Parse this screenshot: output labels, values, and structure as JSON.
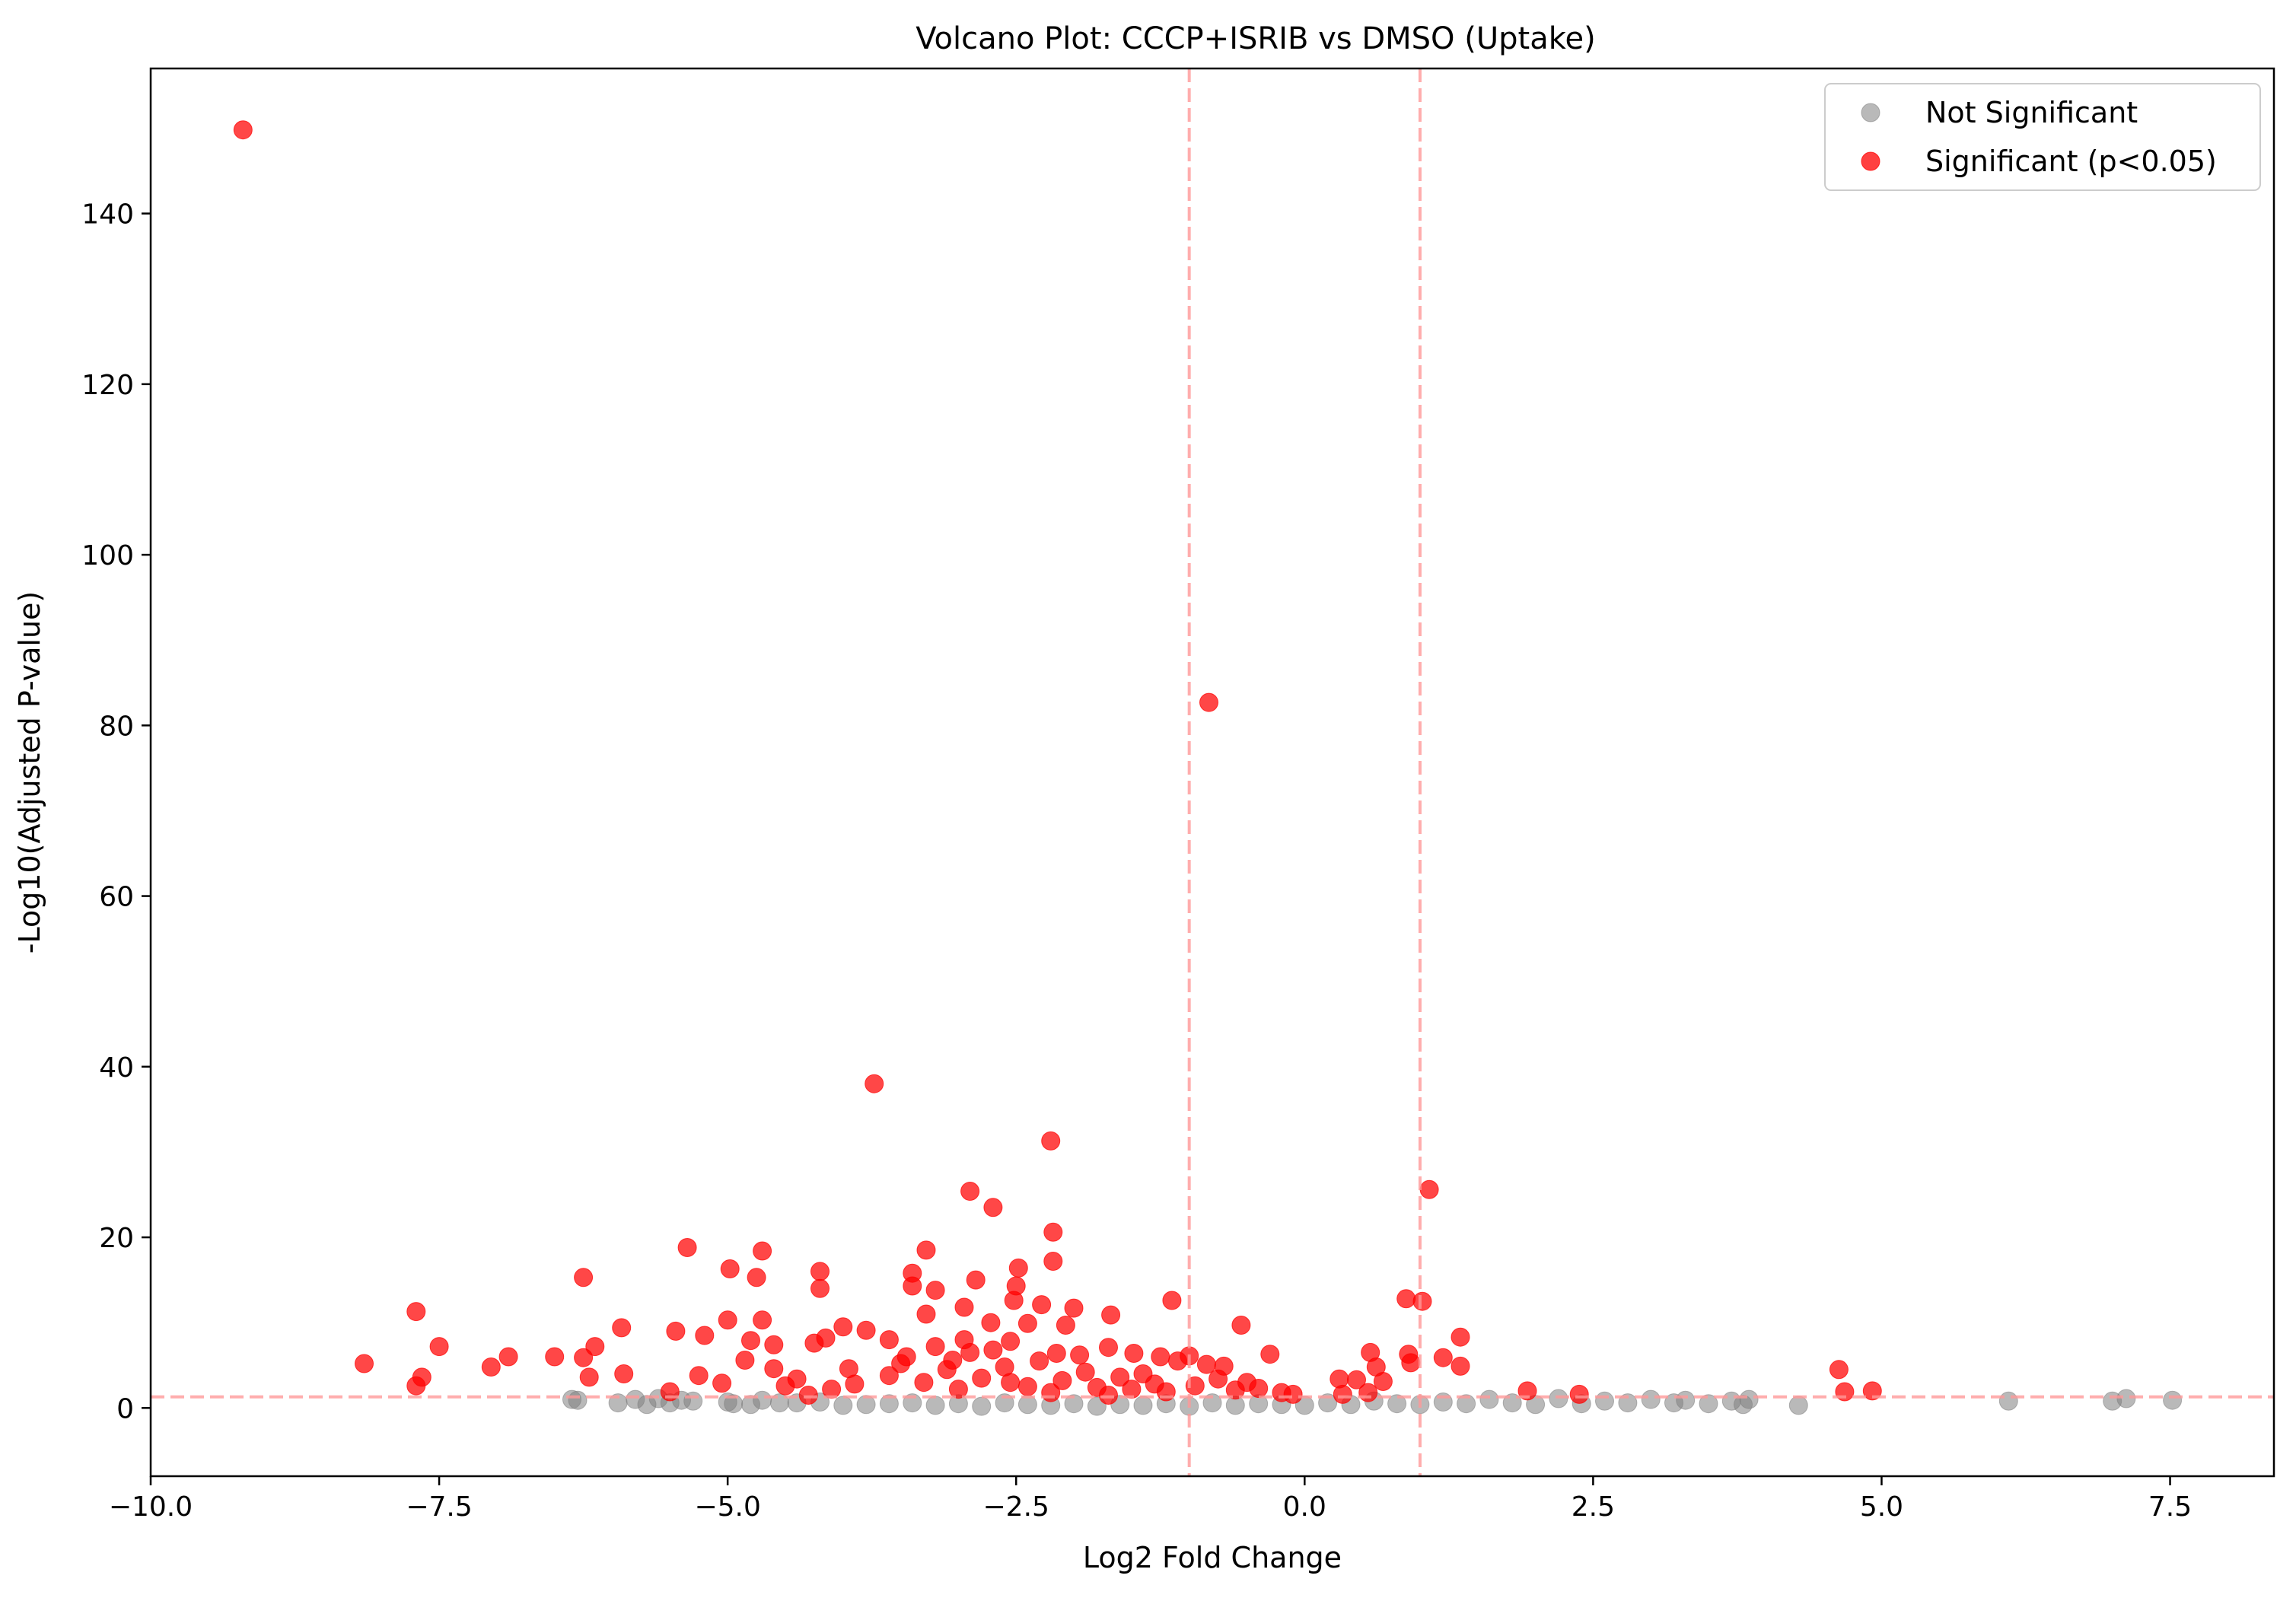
{
  "chart_data": {
    "type": "scatter",
    "title": "Volcano Plot: CCCP+ISRIB vs DMSO (Uptake)",
    "xlabel": "Log2 Fold Change",
    "ylabel": "-Log10(Adjusted P-value)",
    "xlim": [
      -10.0,
      8.4
    ],
    "ylim": [
      -8,
      157
    ],
    "x_ticks": [
      -10.0,
      -7.5,
      -5.0,
      -2.5,
      0.0,
      2.5,
      5.0,
      7.5
    ],
    "x_tick_labels": [
      "−10.0",
      "−7.5",
      "−5.0",
      "−2.5",
      "0.0",
      "2.5",
      "5.0",
      "7.5"
    ],
    "y_ticks": [
      0,
      20,
      40,
      60,
      80,
      100,
      120,
      140
    ],
    "y_tick_labels": [
      "0",
      "20",
      "40",
      "60",
      "80",
      "100",
      "120",
      "140"
    ],
    "grid": false,
    "legend_position": "top-right",
    "reference_lines": {
      "vertical_x": [
        -1,
        1
      ],
      "horizontal_y": [
        1.3
      ],
      "color": "#ff9999",
      "style": "dashed"
    },
    "series": [
      {
        "name": "Not Significant",
        "color": "#808080",
        "points": [
          [
            -6.35,
            1.0
          ],
          [
            -6.3,
            0.9
          ],
          [
            -5.95,
            0.6
          ],
          [
            -5.8,
            1.0
          ],
          [
            -5.7,
            0.4
          ],
          [
            -5.6,
            1.1
          ],
          [
            -5.5,
            0.6
          ],
          [
            -5.4,
            0.9
          ],
          [
            -5.3,
            0.8
          ],
          [
            -5.0,
            0.7
          ],
          [
            -4.95,
            0.5
          ],
          [
            -4.8,
            0.4
          ],
          [
            -4.7,
            0.9
          ],
          [
            -4.55,
            0.6
          ],
          [
            -4.4,
            0.6
          ],
          [
            -4.2,
            0.7
          ],
          [
            -4.0,
            0.3
          ],
          [
            -3.8,
            0.4
          ],
          [
            -3.6,
            0.5
          ],
          [
            -3.4,
            0.6
          ],
          [
            -3.2,
            0.3
          ],
          [
            -3.0,
            0.5
          ],
          [
            -2.8,
            0.2
          ],
          [
            -2.6,
            0.6
          ],
          [
            -2.4,
            0.4
          ],
          [
            -2.2,
            0.3
          ],
          [
            -2.0,
            0.5
          ],
          [
            -1.8,
            0.2
          ],
          [
            -1.6,
            0.4
          ],
          [
            -1.4,
            0.3
          ],
          [
            -1.2,
            0.5
          ],
          [
            -1.0,
            0.2
          ],
          [
            -0.8,
            0.6
          ],
          [
            -0.6,
            0.3
          ],
          [
            -0.4,
            0.5
          ],
          [
            -0.2,
            0.4
          ],
          [
            0.0,
            0.3
          ],
          [
            0.2,
            0.6
          ],
          [
            0.4,
            0.4
          ],
          [
            0.6,
            0.8
          ],
          [
            0.8,
            0.5
          ],
          [
            1.0,
            0.4
          ],
          [
            1.2,
            0.7
          ],
          [
            1.4,
            0.5
          ],
          [
            1.6,
            1.0
          ],
          [
            1.8,
            0.6
          ],
          [
            2.0,
            0.4
          ],
          [
            2.2,
            1.1
          ],
          [
            2.4,
            0.5
          ],
          [
            2.6,
            0.8
          ],
          [
            2.8,
            0.6
          ],
          [
            3.0,
            1.0
          ],
          [
            3.2,
            0.6
          ],
          [
            3.3,
            0.9
          ],
          [
            3.5,
            0.5
          ],
          [
            3.7,
            0.8
          ],
          [
            3.8,
            0.4
          ],
          [
            3.85,
            1.0
          ],
          [
            4.28,
            0.3
          ],
          [
            6.1,
            0.8
          ],
          [
            7.0,
            0.8
          ],
          [
            7.12,
            1.1
          ],
          [
            7.52,
            0.9
          ]
        ]
      },
      {
        "name": "Significant (p<0.05)",
        "color": "#ff0000",
        "points": [
          [
            -9.2,
            149.8
          ],
          [
            -0.83,
            82.7
          ],
          [
            -3.73,
            38.0
          ],
          [
            -2.2,
            31.3
          ],
          [
            1.08,
            25.6
          ],
          [
            -2.9,
            25.4
          ],
          [
            -2.7,
            23.5
          ],
          [
            -2.18,
            20.6
          ],
          [
            -5.35,
            18.8
          ],
          [
            -4.7,
            18.4
          ],
          [
            -3.28,
            18.5
          ],
          [
            -2.18,
            17.2
          ],
          [
            -2.48,
            16.4
          ],
          [
            -4.98,
            16.3
          ],
          [
            -4.2,
            16.0
          ],
          [
            -3.4,
            15.8
          ],
          [
            -6.25,
            15.3
          ],
          [
            -4.75,
            15.3
          ],
          [
            -2.85,
            15.0
          ],
          [
            -3.4,
            14.3
          ],
          [
            -2.5,
            14.3
          ],
          [
            -4.2,
            14.0
          ],
          [
            -3.2,
            13.8
          ],
          [
            0.88,
            12.8
          ],
          [
            1.02,
            12.5
          ],
          [
            -1.15,
            12.6
          ],
          [
            -2.52,
            12.6
          ],
          [
            -2.28,
            12.1
          ],
          [
            -3.28,
            11.0
          ],
          [
            -2.0,
            11.7
          ],
          [
            -7.7,
            11.3
          ],
          [
            -1.68,
            10.9
          ],
          [
            -2.95,
            11.8
          ],
          [
            -3.6,
            8.0
          ],
          [
            -2.72,
            10.0
          ],
          [
            -4.0,
            9.5
          ],
          [
            -5.92,
            9.4
          ],
          [
            -5.0,
            10.3
          ],
          [
            -4.7,
            10.3
          ],
          [
            -0.55,
            9.7
          ],
          [
            -2.4,
            9.9
          ],
          [
            -2.07,
            9.7
          ],
          [
            -3.8,
            9.1
          ],
          [
            -5.45,
            9.0
          ],
          [
            1.35,
            8.3
          ],
          [
            -5.2,
            8.5
          ],
          [
            -4.8,
            7.9
          ],
          [
            -4.15,
            8.2
          ],
          [
            -2.95,
            8.0
          ],
          [
            -2.55,
            7.8
          ],
          [
            -4.6,
            7.4
          ],
          [
            -4.25,
            7.6
          ],
          [
            -6.15,
            7.2
          ],
          [
            -7.5,
            7.2
          ],
          [
            -1.7,
            7.1
          ],
          [
            -1.0,
            6.1
          ],
          [
            -1.48,
            6.4
          ],
          [
            -1.25,
            6.0
          ],
          [
            -0.3,
            6.3
          ],
          [
            0.57,
            6.5
          ],
          [
            0.9,
            6.3
          ],
          [
            -6.9,
            6.0
          ],
          [
            -6.5,
            6.0
          ],
          [
            -6.25,
            5.9
          ],
          [
            1.2,
            5.9
          ],
          [
            -4.85,
            5.6
          ],
          [
            -1.1,
            5.5
          ],
          [
            -0.85,
            5.1
          ],
          [
            -0.7,
            4.9
          ],
          [
            0.62,
            4.8
          ],
          [
            0.92,
            5.3
          ],
          [
            1.35,
            4.9
          ],
          [
            -8.15,
            5.2
          ],
          [
            -7.05,
            4.8
          ],
          [
            -5.9,
            4.0
          ],
          [
            -4.6,
            4.6
          ],
          [
            4.63,
            4.5
          ],
          [
            -5.25,
            3.8
          ],
          [
            -6.2,
            3.6
          ],
          [
            -7.65,
            3.6
          ],
          [
            -7.7,
            2.6
          ],
          [
            0.3,
            3.4
          ],
          [
            0.45,
            3.3
          ],
          [
            0.68,
            3.1
          ],
          [
            -5.05,
            2.9
          ],
          [
            -4.5,
            2.6
          ],
          [
            4.68,
            1.9
          ],
          [
            4.92,
            2.0
          ],
          [
            1.93,
            2.0
          ],
          [
            2.38,
            1.6
          ],
          [
            0.55,
            1.8
          ],
          [
            0.33,
            1.6
          ],
          [
            -0.2,
            1.8
          ],
          [
            -0.1,
            1.6
          ],
          [
            -5.5,
            1.9
          ],
          [
            -4.3,
            1.5
          ],
          [
            -4.1,
            2.2
          ],
          [
            -3.3,
            3.0
          ],
          [
            -3.1,
            4.5
          ],
          [
            -2.9,
            6.5
          ],
          [
            -2.8,
            3.5
          ],
          [
            -2.6,
            4.8
          ],
          [
            -2.4,
            2.5
          ],
          [
            -2.3,
            5.5
          ],
          [
            -2.1,
            3.2
          ],
          [
            -1.9,
            4.2
          ],
          [
            -1.8,
            2.4
          ],
          [
            -1.6,
            3.6
          ],
          [
            -1.5,
            2.2
          ],
          [
            -1.4,
            4.0
          ],
          [
            -1.3,
            2.8
          ],
          [
            -1.2,
            1.9
          ],
          [
            -0.95,
            2.6
          ],
          [
            -0.75,
            3.4
          ],
          [
            -0.6,
            2.1
          ],
          [
            -0.5,
            3.0
          ],
          [
            -0.4,
            2.3
          ],
          [
            -3.5,
            5.2
          ],
          [
            -3.6,
            3.8
          ],
          [
            -3.9,
            2.8
          ],
          [
            -3.95,
            4.6
          ],
          [
            -4.4,
            3.4
          ],
          [
            -3.0,
            2.2
          ],
          [
            -2.2,
            1.8
          ],
          [
            -1.7,
            1.5
          ],
          [
            -3.2,
            7.2
          ],
          [
            -3.45,
            6.0
          ],
          [
            -3.05,
            5.6
          ],
          [
            -2.7,
            6.8
          ],
          [
            -2.15,
            6.4
          ],
          [
            -1.95,
            6.2
          ],
          [
            -2.55,
            3.0
          ]
        ]
      }
    ]
  },
  "legend": {
    "items": [
      {
        "label": "Not Significant",
        "color": "#808080"
      },
      {
        "label": "Significant (p<0.05)",
        "color": "#ff0000"
      }
    ]
  }
}
